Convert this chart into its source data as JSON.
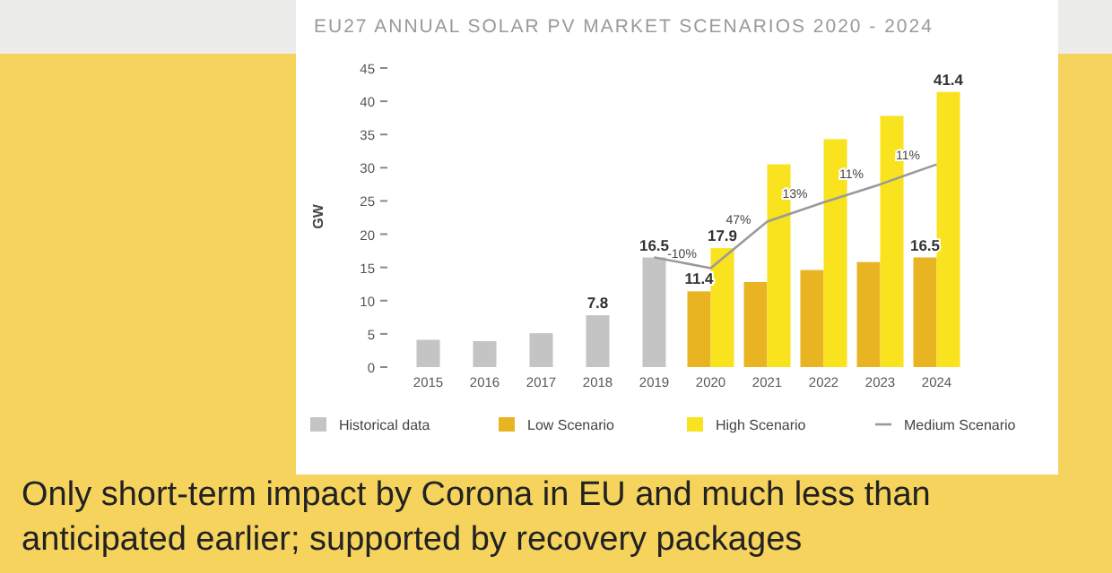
{
  "chart_data": {
    "type": "bar",
    "title": "EU27 ANNUAL SOLAR PV MARKET SCENARIOS 2020 - 2024",
    "ylabel": "GW",
    "categories": [
      "2015",
      "2016",
      "2017",
      "2018",
      "2019",
      "2020",
      "2021",
      "2022",
      "2023",
      "2024"
    ],
    "series": [
      {
        "name": "Historical data",
        "color": "#c4c4c4",
        "values": [
          4.1,
          3.9,
          5.1,
          7.8,
          16.5,
          null,
          null,
          null,
          null,
          null
        ],
        "value_labels": [
          null,
          null,
          null,
          "7.8",
          "16.5",
          null,
          null,
          null,
          null,
          null
        ]
      },
      {
        "name": "Low Scenario",
        "color": "#e9b422",
        "values": [
          null,
          null,
          null,
          null,
          null,
          11.4,
          12.8,
          14.6,
          15.8,
          16.5
        ],
        "value_labels": [
          null,
          null,
          null,
          null,
          null,
          "11.4",
          null,
          null,
          null,
          "16.5"
        ]
      },
      {
        "name": "High Scenario",
        "color": "#f9e21e",
        "values": [
          null,
          null,
          null,
          null,
          null,
          17.9,
          30.5,
          34.3,
          37.8,
          41.4
        ],
        "value_labels": [
          null,
          null,
          null,
          null,
          null,
          "17.9",
          null,
          null,
          null,
          "41.4"
        ]
      },
      {
        "name": "Medium Scenario",
        "type": "line",
        "color": "#9a9a9a",
        "values": [
          null,
          null,
          null,
          null,
          16.5,
          14.9,
          21.9,
          24.8,
          27.5,
          30.5
        ]
      }
    ],
    "ylim": [
      0,
      45
    ],
    "yticks": [
      0,
      5,
      10,
      15,
      20,
      25,
      30,
      35,
      40,
      45
    ],
    "grid": false,
    "legend": "bottom",
    "marker": "none",
    "line_style": "solid",
    "annotations": [
      {
        "text": "-10%",
        "x": "2020",
        "y": 16.4
      },
      {
        "text": "47%",
        "x": "2021",
        "y": 21.5
      },
      {
        "text": "13%",
        "x": "2022",
        "y": 25.5
      },
      {
        "text": "11%",
        "x": "2023",
        "y": 28.4
      },
      {
        "text": "11%",
        "x": "2024",
        "y": 31.2
      },
      "Only short-term impact by Corona in EU and much less than anticipated earlier; supported by recovery packages"
    ]
  }
}
